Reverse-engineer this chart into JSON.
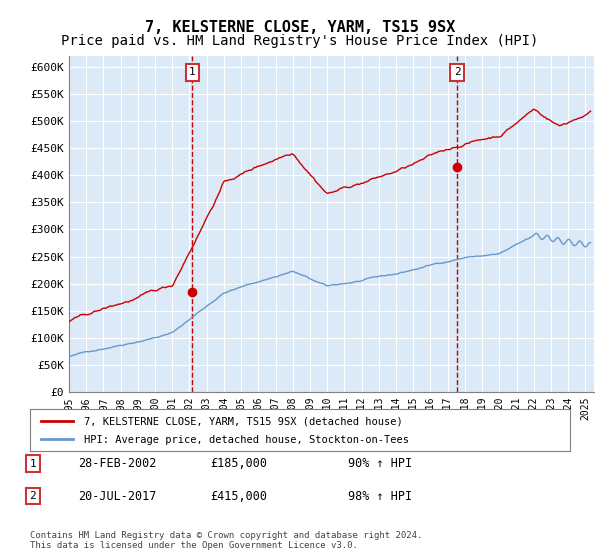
{
  "title": "7, KELSTERNE CLOSE, YARM, TS15 9SX",
  "subtitle": "Price paid vs. HM Land Registry's House Price Index (HPI)",
  "ylabel_ticks": [
    "£0",
    "£50K",
    "£100K",
    "£150K",
    "£200K",
    "£250K",
    "£300K",
    "£350K",
    "£400K",
    "£450K",
    "£500K",
    "£550K",
    "£600K"
  ],
  "ylim": [
    0,
    620000
  ],
  "xlim_start": 1995.0,
  "xlim_end": 2025.5,
  "background_color": "#dce9f7",
  "plot_bg": "#dce9f7",
  "red_line_color": "#cc0000",
  "blue_line_color": "#6699cc",
  "purchase1_date": 2002.16,
  "purchase1_price": 185000,
  "purchase2_date": 2017.55,
  "purchase2_price": 415000,
  "legend_label1": "7, KELSTERNE CLOSE, YARM, TS15 9SX (detached house)",
  "legend_label2": "HPI: Average price, detached house, Stockton-on-Tees",
  "annotation1_label": "1",
  "annotation2_label": "2",
  "table_row1": "1     28-FEB-2002          £185,000        90% ↑ HPI",
  "table_row2": "2     20-JUL-2017          £415,000        98% ↑ HPI",
  "footer": "Contains HM Land Registry data © Crown copyright and database right 2024.\nThis data is licensed under the Open Government Licence v3.0.",
  "title_fontsize": 11,
  "subtitle_fontsize": 10
}
